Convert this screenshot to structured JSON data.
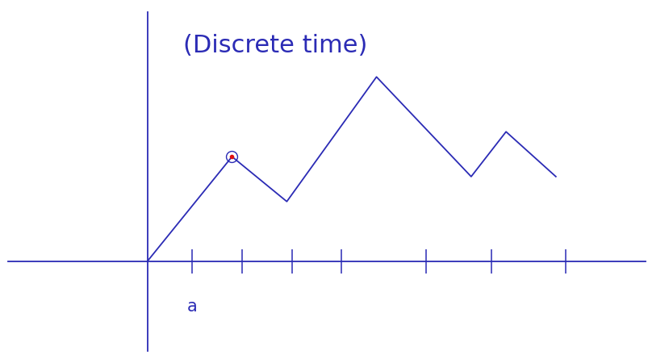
{
  "chart_data": {
    "type": "line",
    "title": "(Discrete time)",
    "x": [
      0,
      1.7,
      2.8,
      4.6,
      6.5,
      7.2,
      8.2
    ],
    "values": [
      0,
      2.1,
      1.2,
      3.7,
      1.7,
      2.6,
      1.7
    ],
    "color": "#2b2bb5",
    "xlim": [
      -2.8,
      10.0
    ],
    "ylim": [
      -1.8,
      5.0
    ],
    "xticks": [
      0.9,
      1.9,
      2.9,
      3.9,
      5.6,
      6.9,
      8.4
    ],
    "tick_labels": false,
    "annotations": [
      {
        "text": "a",
        "x": 0.9,
        "y": -0.9
      }
    ],
    "highlight": {
      "x": 1.7,
      "value": 2.1,
      "color": "#e01010"
    }
  }
}
